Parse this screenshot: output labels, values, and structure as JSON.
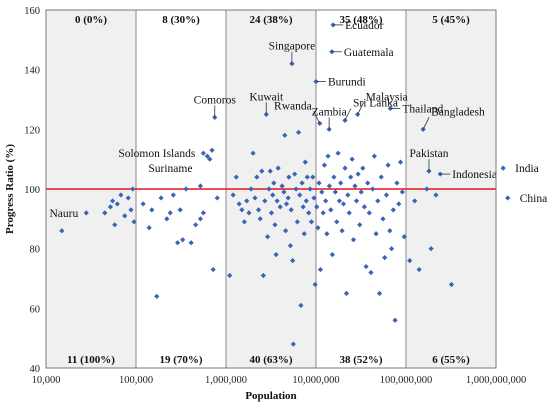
{
  "chart_data": {
    "type": "scatter",
    "title": "",
    "xlabel": "Population",
    "ylabel": "Progress Ratio (%)",
    "x_scale": "log",
    "xlim": [
      10000,
      1000000000
    ],
    "ylim": [
      40,
      160
    ],
    "x_ticks": [
      10000,
      100000,
      1000000,
      10000000,
      100000000,
      1000000000
    ],
    "x_tick_labels": [
      "10,000",
      "100,000",
      "1,000,000",
      "10,000,000",
      "100,000,000",
      "1,000,000,000"
    ],
    "y_ticks": [
      40,
      60,
      80,
      100,
      120,
      140,
      160
    ],
    "reference_line": {
      "y": 100,
      "color": "#e8141b"
    },
    "marker_color": "#3a63b8",
    "band_shading": [
      "#f0f0f0",
      "#ffffff",
      "#f0f0f0",
      "#ffffff",
      "#f0f0f0"
    ],
    "bands": [
      {
        "from": 10000,
        "to": 100000,
        "top_label": "0 (0%)",
        "bottom_label": "11 (100%)"
      },
      {
        "from": 100000,
        "to": 1000000,
        "top_label": "8 (30%)",
        "bottom_label": "19 (70%)"
      },
      {
        "from": 1000000,
        "to": 10000000,
        "top_label": "24 (38%)",
        "bottom_label": "40 (63%)"
      },
      {
        "from": 10000000,
        "to": 100000000,
        "top_label": "35 (48%)",
        "bottom_label": "38 (52%)"
      },
      {
        "from": 100000000,
        "to": 1000000000,
        "top_label": "5 (45%)",
        "bottom_label": "6 (55%)"
      }
    ],
    "labeled_points": [
      {
        "name": "Nauru",
        "x": 28000,
        "y": 92,
        "label_pos": "left",
        "leader": false
      },
      {
        "name": "Suriname",
        "x": 520000,
        "y": 101,
        "label_pos": "above-left",
        "leader": false
      },
      {
        "name": "Solomon Islands",
        "x": 560000,
        "y": 112,
        "label_pos": "left",
        "leader": false
      },
      {
        "name": "Comoros",
        "x": 750000,
        "y": 124,
        "label_pos": "above",
        "leader": true
      },
      {
        "name": "Kuwait",
        "x": 2800000,
        "y": 125,
        "label_pos": "above",
        "leader": true
      },
      {
        "name": "Singapore",
        "x": 5400000,
        "y": 142,
        "label_pos": "above",
        "leader": true
      },
      {
        "name": "Rwanda",
        "x": 11000000,
        "y": 122,
        "label_pos": "above-left",
        "leader": true
      },
      {
        "name": "Burundi",
        "x": 10000000,
        "y": 136,
        "label_pos": "right",
        "leader": true
      },
      {
        "name": "Zambia",
        "x": 14000000,
        "y": 120,
        "label_pos": "above",
        "leader": true
      },
      {
        "name": "Ecuador",
        "x": 15500000,
        "y": 155,
        "label_pos": "right",
        "leader": true
      },
      {
        "name": "Guatemala",
        "x": 15000000,
        "y": 146,
        "label_pos": "right",
        "leader": true
      },
      {
        "name": "Sri Lanka",
        "x": 21000000,
        "y": 123,
        "label_pos": "above-right",
        "leader": true
      },
      {
        "name": "Malaysia",
        "x": 29000000,
        "y": 125,
        "label_pos": "above-right",
        "leader": true
      },
      {
        "name": "Thailand",
        "x": 67000000,
        "y": 127,
        "label_pos": "right",
        "leader": true
      },
      {
        "name": "Bangladesh",
        "x": 155000000,
        "y": 120,
        "label_pos": "above-right",
        "leader": true
      },
      {
        "name": "Pakistan",
        "x": 180000000,
        "y": 106,
        "label_pos": "above",
        "leader": true
      },
      {
        "name": "Indonesia",
        "x": 240000000,
        "y": 105,
        "label_pos": "right",
        "leader": true
      },
      {
        "name": "India",
        "x": 1200000000,
        "y": 107,
        "label_pos": "right",
        "leader": false
      },
      {
        "name": "China",
        "x": 1350000000,
        "y": 97,
        "label_pos": "right",
        "leader": false
      }
    ],
    "points": [
      [
        15000,
        86
      ],
      [
        45000,
        92
      ],
      [
        52000,
        94
      ],
      [
        55000,
        96
      ],
      [
        58000,
        88
      ],
      [
        62000,
        95
      ],
      [
        68000,
        98
      ],
      [
        75000,
        91
      ],
      [
        82000,
        97
      ],
      [
        88000,
        93
      ],
      [
        92000,
        100
      ],
      [
        95000,
        89
      ],
      [
        120000,
        95
      ],
      [
        140000,
        87
      ],
      [
        150000,
        93
      ],
      [
        170000,
        64
      ],
      [
        190000,
        97
      ],
      [
        220000,
        90
      ],
      [
        240000,
        92
      ],
      [
        260000,
        98
      ],
      [
        290000,
        82
      ],
      [
        310000,
        93
      ],
      [
        330000,
        83
      ],
      [
        360000,
        100
      ],
      [
        410000,
        82
      ],
      [
        460000,
        88
      ],
      [
        520000,
        90
      ],
      [
        560000,
        92
      ],
      [
        620000,
        111
      ],
      [
        660000,
        110
      ],
      [
        700000,
        113
      ],
      [
        720000,
        73
      ],
      [
        800000,
        97
      ],
      [
        1100000,
        71
      ],
      [
        1200000,
        98
      ],
      [
        1300000,
        104
      ],
      [
        1400000,
        95
      ],
      [
        1500000,
        93
      ],
      [
        1600000,
        89
      ],
      [
        1700000,
        96
      ],
      [
        1800000,
        92
      ],
      [
        1900000,
        100
      ],
      [
        2000000,
        112
      ],
      [
        2100000,
        97
      ],
      [
        2200000,
        104
      ],
      [
        2300000,
        93
      ],
      [
        2400000,
        90
      ],
      [
        2500000,
        106
      ],
      [
        2600000,
        71
      ],
      [
        2700000,
        96
      ],
      [
        2900000,
        84
      ],
      [
        3000000,
        100
      ],
      [
        3100000,
        106
      ],
      [
        3200000,
        92
      ],
      [
        3300000,
        98
      ],
      [
        3400000,
        102
      ],
      [
        3500000,
        88
      ],
      [
        3600000,
        78
      ],
      [
        3700000,
        96
      ],
      [
        3800000,
        107
      ],
      [
        4000000,
        94
      ],
      [
        4200000,
        101
      ],
      [
        4400000,
        99
      ],
      [
        4500000,
        118
      ],
      [
        4600000,
        86
      ],
      [
        4700000,
        95
      ],
      [
        4900000,
        97
      ],
      [
        5000000,
        104
      ],
      [
        5200000,
        81
      ],
      [
        5300000,
        93
      ],
      [
        5500000,
        76
      ],
      [
        5600000,
        48
      ],
      [
        5800000,
        105
      ],
      [
        6000000,
        100
      ],
      [
        6200000,
        89
      ],
      [
        6400000,
        119
      ],
      [
        6600000,
        98
      ],
      [
        6800000,
        61
      ],
      [
        7000000,
        102
      ],
      [
        7200000,
        94
      ],
      [
        7400000,
        85
      ],
      [
        7600000,
        109
      ],
      [
        7800000,
        96
      ],
      [
        8000000,
        104
      ],
      [
        8300000,
        92
      ],
      [
        8600000,
        100
      ],
      [
        8900000,
        89
      ],
      [
        9200000,
        104
      ],
      [
        9500000,
        97
      ],
      [
        9800000,
        68
      ],
      [
        10200000,
        94
      ],
      [
        10500000,
        87
      ],
      [
        10800000,
        102
      ],
      [
        11200000,
        73
      ],
      [
        11600000,
        99
      ],
      [
        12000000,
        92
      ],
      [
        12400000,
        108
      ],
      [
        12800000,
        96
      ],
      [
        13200000,
        85
      ],
      [
        13600000,
        111
      ],
      [
        14100000,
        101
      ],
      [
        14600000,
        93
      ],
      [
        15200000,
        78
      ],
      [
        15800000,
        104
      ],
      [
        16400000,
        99
      ],
      [
        17000000,
        89
      ],
      [
        17600000,
        112
      ],
      [
        18200000,
        96
      ],
      [
        18800000,
        102
      ],
      [
        19500000,
        86
      ],
      [
        20200000,
        95
      ],
      [
        21000000,
        107
      ],
      [
        21800000,
        65
      ],
      [
        22600000,
        98
      ],
      [
        23400000,
        92
      ],
      [
        24300000,
        104
      ],
      [
        25200000,
        110
      ],
      [
        26100000,
        83
      ],
      [
        27100000,
        101
      ],
      [
        28200000,
        96
      ],
      [
        29400000,
        105
      ],
      [
        30600000,
        88
      ],
      [
        31800000,
        99
      ],
      [
        33100000,
        107
      ],
      [
        34500000,
        94
      ],
      [
        36000000,
        74
      ],
      [
        37500000,
        102
      ],
      [
        39100000,
        92
      ],
      [
        40800000,
        72
      ],
      [
        42600000,
        100
      ],
      [
        44500000,
        111
      ],
      [
        46500000,
        85
      ],
      [
        48600000,
        96
      ],
      [
        50800000,
        65
      ],
      [
        53100000,
        104
      ],
      [
        55500000,
        90
      ],
      [
        58000000,
        77
      ],
      [
        60600000,
        98
      ],
      [
        63300000,
        108
      ],
      [
        66100000,
        86
      ],
      [
        69100000,
        80
      ],
      [
        72300000,
        93
      ],
      [
        75700000,
        56
      ],
      [
        79300000,
        102
      ],
      [
        83100000,
        95
      ],
      [
        87000000,
        109
      ],
      [
        91000000,
        99
      ],
      [
        95500000,
        84
      ],
      [
        110000000,
        76
      ],
      [
        125000000,
        96
      ],
      [
        140000000,
        73
      ],
      [
        170000000,
        100
      ],
      [
        190000000,
        80
      ],
      [
        215000000,
        98
      ],
      [
        320000000,
        68
      ]
    ]
  }
}
